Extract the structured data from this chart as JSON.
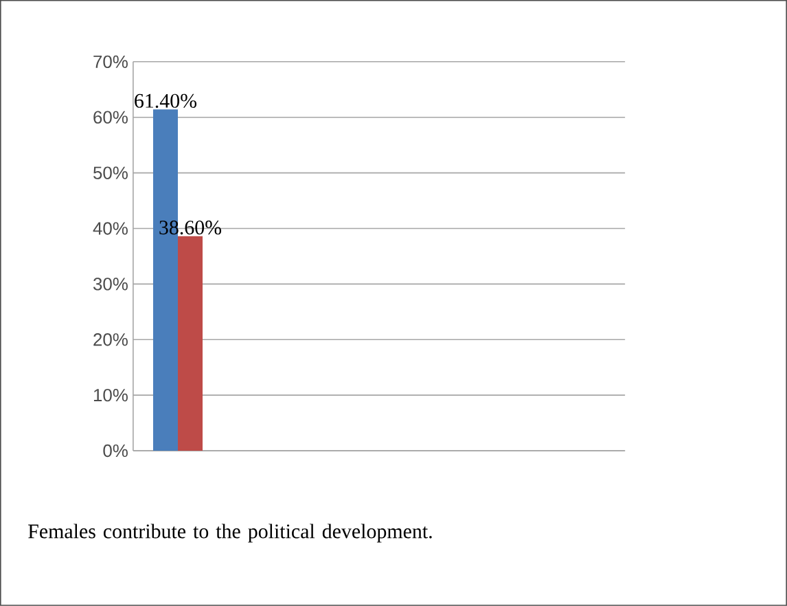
{
  "chart_data": {
    "type": "bar",
    "categories": [
      null
    ],
    "series": [
      {
        "color": "#4a7ebb",
        "values": [
          61.4
        ],
        "value_labels": [
          "61.40%"
        ]
      },
      {
        "color": "#be4b48",
        "values": [
          38.6
        ],
        "value_labels": [
          "38.60%"
        ]
      }
    ],
    "ylim": [
      0,
      70
    ],
    "yticks": [
      {
        "value": 0,
        "label": "0%"
      },
      {
        "value": 10,
        "label": "10%"
      },
      {
        "value": 20,
        "label": "20%"
      },
      {
        "value": 30,
        "label": "30%"
      },
      {
        "value": 40,
        "label": "40%"
      },
      {
        "value": 50,
        "label": "50%"
      },
      {
        "value": 60,
        "label": "60%"
      },
      {
        "value": 70,
        "label": "70%"
      }
    ],
    "grid": "y",
    "annotations": [
      "Females contribute to the political development."
    ]
  }
}
